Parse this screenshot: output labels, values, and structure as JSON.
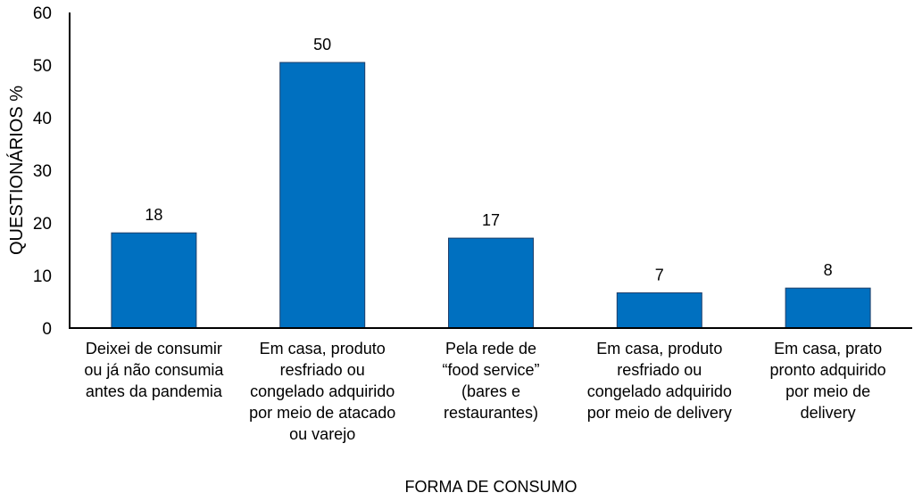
{
  "chart_data": {
    "type": "bar",
    "title": "",
    "xlabel": "FORMA DE CONSUMO",
    "ylabel": "QUESTIONÁRIOS %",
    "ylim": [
      0,
      60
    ],
    "yticks": [
      "0",
      "10",
      "20",
      "30",
      "40",
      "50",
      "60"
    ],
    "grid": false,
    "categories": [
      [
        "Deixei de consumir",
        "ou já não consumia",
        "antes da pandemia"
      ],
      [
        "Em casa, produto",
        "resfriado ou",
        "congelado adquirido",
        "por meio de atacado",
        "ou varejo"
      ],
      [
        "Pela rede de",
        "“food service”",
        "(bares e",
        "restaurantes)"
      ],
      [
        "Em casa, produto",
        "resfriado ou",
        "congelado adquirido",
        "por meio de delivery"
      ],
      [
        "Em casa, prato",
        "pronto adquirido",
        "por meio de",
        "delivery"
      ]
    ],
    "values": [
      18.1,
      50.5,
      17.1,
      6.7,
      7.6
    ],
    "data_labels": [
      "18",
      "50",
      "17",
      "7",
      "8"
    ],
    "bar_color": "#0070C0"
  }
}
